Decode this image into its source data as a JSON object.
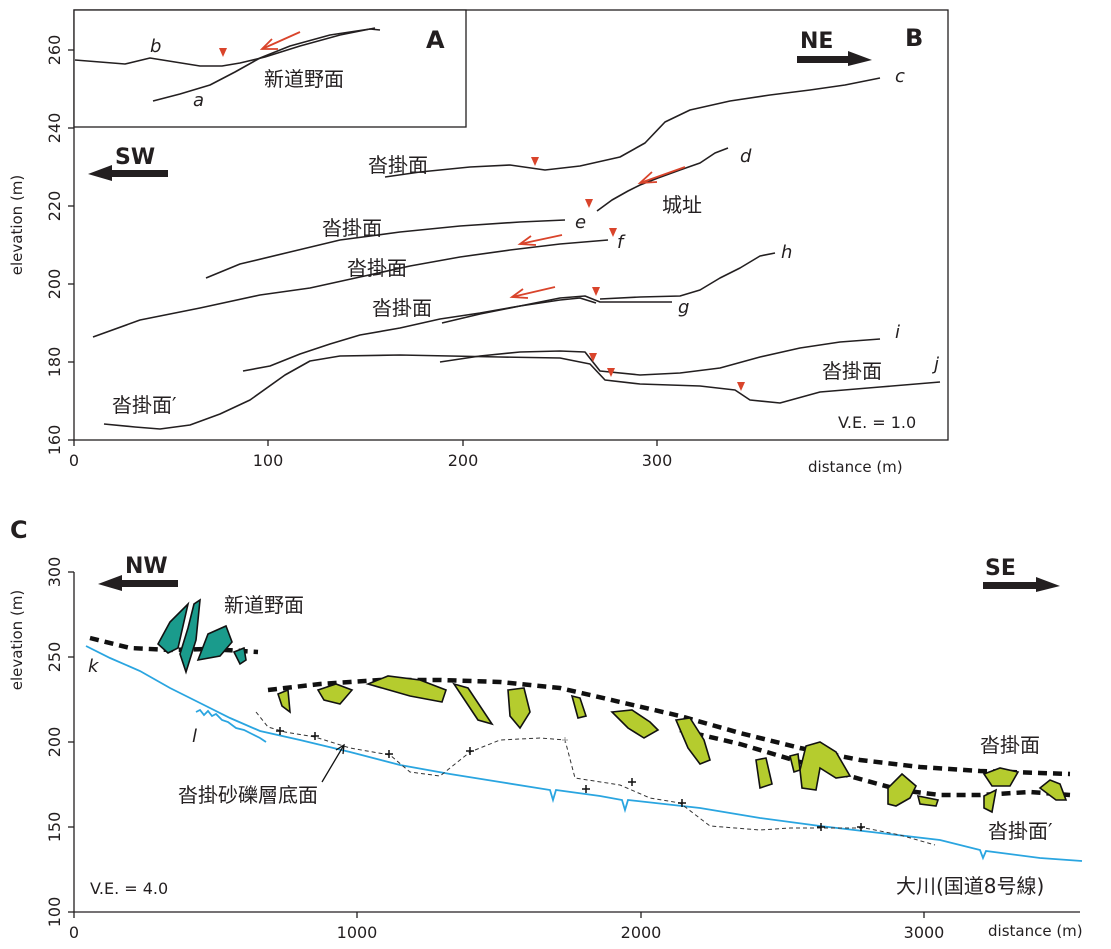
{
  "panel_b": {
    "label": "B",
    "y_axis": {
      "label": "elevation (m)",
      "ticks": [
        "160",
        "180",
        "200",
        "220",
        "240",
        "260"
      ]
    },
    "x_axis": {
      "label": "distance (m)",
      "ticks": [
        "0",
        "100",
        "200",
        "300"
      ]
    },
    "direction_left": "SW",
    "direction_right": "NE",
    "vertical_exaggeration": "V.E. = 1.0",
    "profile_labels": [
      "c",
      "d",
      "e",
      "f",
      "g",
      "h",
      "i",
      "j"
    ],
    "surface_names": {
      "tonkake_1": "沓掛面",
      "tonkake_2": "沓掛面",
      "tonkake_3": "沓掛面",
      "tonkake_4": "沓掛面",
      "tonkake_5": "沓掛面",
      "tonkake_prime": "沓掛面′",
      "castle": "城址"
    }
  },
  "panel_a": {
    "label": "A",
    "surface_name": "新道野面",
    "profile_labels": [
      "a",
      "b"
    ]
  },
  "panel_c": {
    "label": "C",
    "y_axis": {
      "label": "elevation (m)",
      "ticks": [
        "100",
        "150",
        "200",
        "250",
        "300"
      ]
    },
    "x_axis": {
      "label": "distance (m)",
      "ticks": [
        "0",
        "1000",
        "2000",
        "3000"
      ]
    },
    "direction_left": "NW",
    "direction_right": "SE",
    "vertical_exaggeration": "V.E. = 4.0",
    "profile_labels": [
      "k",
      "l"
    ],
    "surface_names": {
      "shindono": "新道野面",
      "tonkake": "沓掛面",
      "tonkake_prime": "沓掛面′",
      "gravel_base": "沓掛砂礫層底面",
      "river": "大川(国道8号線)"
    }
  },
  "colors": {
    "teal_deposit": "#1a9b8c",
    "olive_deposit": "#b5cc2e",
    "river_line": "#2aa5e0",
    "fault_marker": "#d9442b"
  }
}
